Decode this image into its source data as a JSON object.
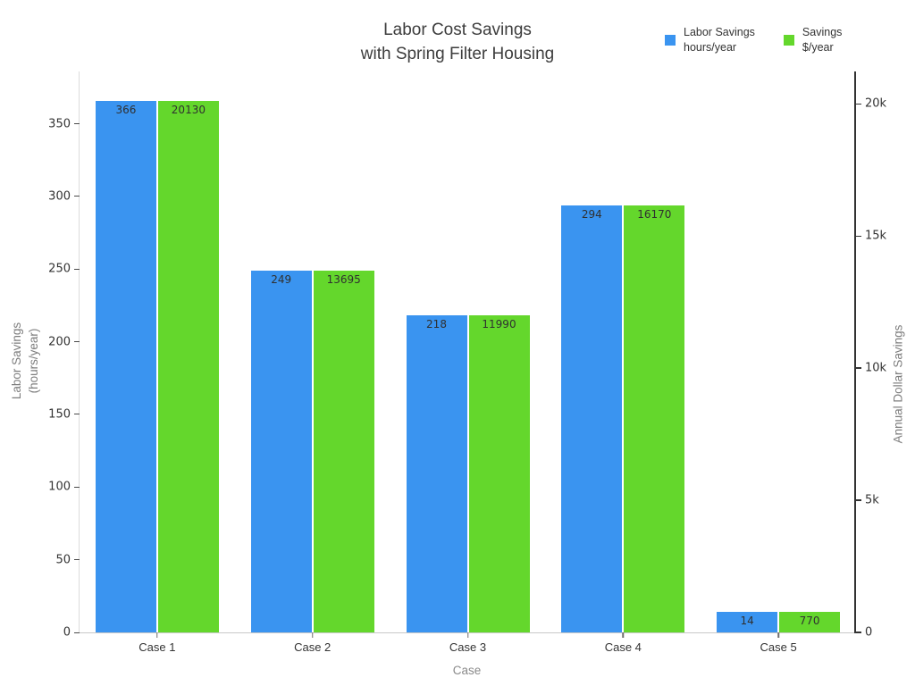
{
  "title": "Labor Cost Savings\nwith Spring Filter Housing",
  "legend": {
    "items": [
      {
        "label": "Labor Savings\nhours/year"
      },
      {
        "label": "Savings\n$/year"
      }
    ]
  },
  "axes": {
    "left": {
      "title": "Labor Savings\n(hours/year)",
      "ticks": [
        0,
        50,
        100,
        150,
        200,
        250,
        300,
        350
      ],
      "max": 386
    },
    "right": {
      "title": "Annual Dollar Savings",
      "tick_labels": [
        "0",
        "5k",
        "10k",
        "15k",
        "20k"
      ],
      "tick_values": [
        0,
        5000,
        10000,
        15000,
        20000
      ],
      "max": 21230
    },
    "x": {
      "title": "Case"
    }
  },
  "chart_data": {
    "type": "bar",
    "title": "Labor Cost Savings with Spring Filter Housing",
    "categories": [
      "Case 1",
      "Case 2",
      "Case 3",
      "Case 4",
      "Case 5"
    ],
    "series": [
      {
        "name": "Labor Savings hours/year",
        "yaxis": "left",
        "color": "#3a94f0",
        "values": [
          366,
          249,
          218,
          294,
          14
        ]
      },
      {
        "name": "Savings $/year",
        "yaxis": "right",
        "color": "#64d72c",
        "values": [
          20130,
          13695,
          11990,
          16170,
          770
        ]
      }
    ],
    "xlabel": "Case",
    "ylabel_left": "Labor Savings (hours/year)",
    "ylabel_right": "Annual Dollar Savings",
    "left_axis_range": [
      0,
      386
    ],
    "right_axis_range": [
      0,
      21230
    ],
    "grid": false,
    "bar_value_labels": true,
    "legend_position": "top-right"
  }
}
